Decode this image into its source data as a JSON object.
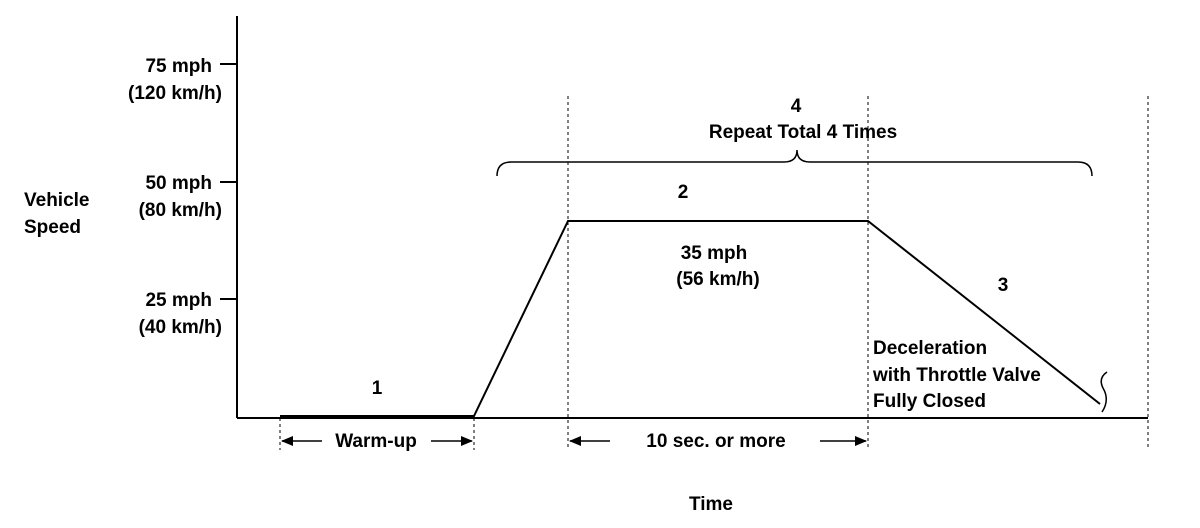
{
  "axes": {
    "y_label_line1": "Vehicle",
    "y_label_line2": "Speed",
    "x_label": "Time",
    "y_ticks": [
      {
        "mph": "75 mph",
        "kmh": "(120 km/h)"
      },
      {
        "mph": "50 mph",
        "kmh": "(80 km/h)"
      },
      {
        "mph": "25 mph",
        "kmh": "(40 km/h)"
      }
    ]
  },
  "phases": {
    "p1": "1",
    "p2": "2",
    "p3": "3",
    "p4": "4",
    "repeat": "Repeat Total 4 Times",
    "cruise_mph": "35 mph",
    "cruise_kmh": "(56 km/h)",
    "decel_line1": "Deceleration",
    "decel_line2": "with Throttle Valve",
    "decel_line3": "Fully Closed"
  },
  "durations": {
    "warmup": "Warm-up",
    "hold": "10 sec. or more"
  }
}
